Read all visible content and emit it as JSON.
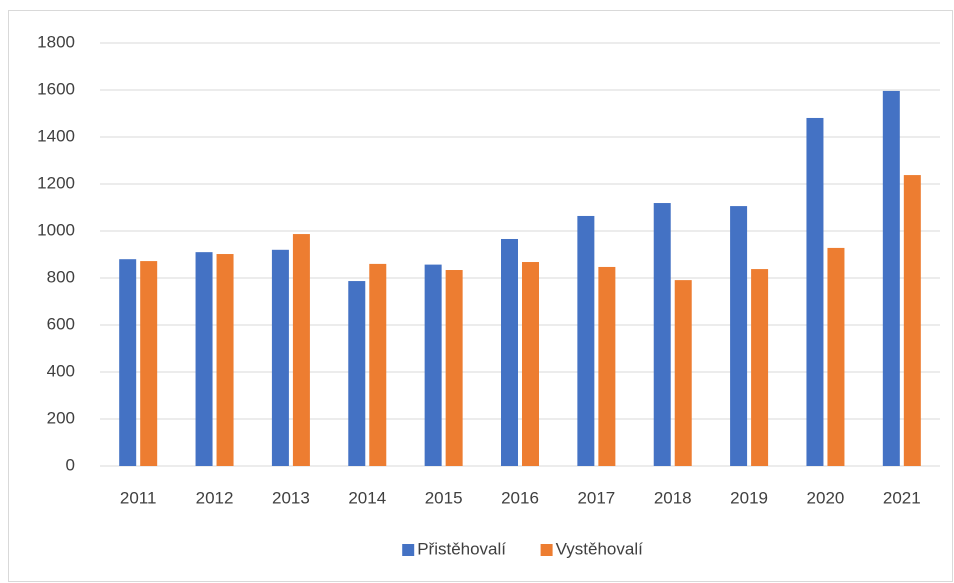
{
  "chart_data": {
    "type": "bar",
    "categories": [
      "2011",
      "2012",
      "2013",
      "2014",
      "2015",
      "2016",
      "2017",
      "2018",
      "2019",
      "2020",
      "2021"
    ],
    "series": [
      {
        "name": "Přistěhovalí",
        "color": "#4472c4",
        "values": [
          880,
          910,
          920,
          787,
          857,
          966,
          1064,
          1119,
          1106,
          1481,
          1596
        ]
      },
      {
        "name": "Vystěhovalí",
        "color": "#ed7d31",
        "values": [
          872,
          902,
          987,
          860,
          834,
          868,
          847,
          791,
          838,
          928,
          1238
        ]
      }
    ],
    "ylim": [
      0,
      1800
    ],
    "yticks": [
      0,
      200,
      400,
      600,
      800,
      1000,
      1200,
      1400,
      1600,
      1800
    ],
    "grid": true,
    "legend": "bottom"
  }
}
